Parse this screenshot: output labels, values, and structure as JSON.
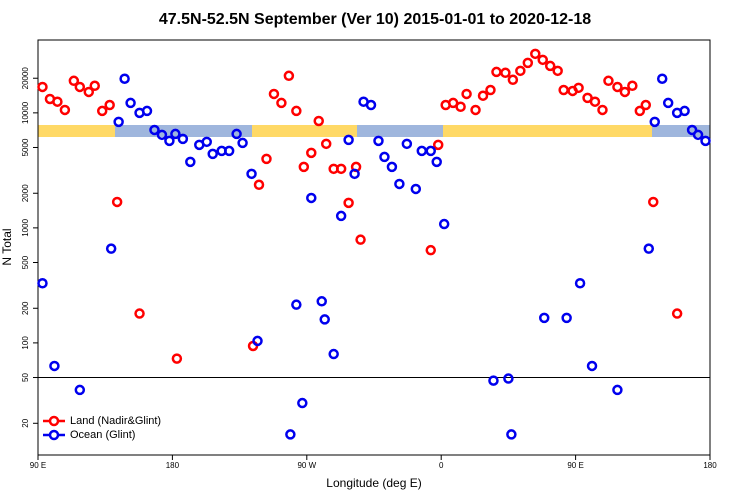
{
  "chart_data": {
    "type": "scatter",
    "title": "47.5N-52.5N September (Ver 10)   2015-01-01 to 2020-12-18",
    "x_label": "Longitude (deg E)",
    "y_label": "N Total",
    "log_y": true,
    "xlim": [
      90,
      540
    ],
    "ylim": [
      10.6,
      43000
    ],
    "xticks": [
      {
        "value": 90,
        "label": "90 E"
      },
      180,
      {
        "value": 270,
        "label": "90 W"
      },
      {
        "value": 360,
        "label": "0"
      },
      {
        "value": 450,
        "label": "90 E"
      },
      {
        "value": 540,
        "label": "180"
      }
    ],
    "yticks": [
      20,
      50,
      100,
      200,
      500,
      1000,
      2000,
      5000,
      10000,
      20000
    ],
    "hline": 50,
    "legend": "bottom-left",
    "series": [
      {
        "name": "Land (Nadir&Glint)",
        "color": "#ff0000",
        "x": [
          93,
          98,
          103,
          108,
          114,
          118,
          124,
          128,
          133,
          138,
          143,
          158,
          183,
          234,
          238,
          243,
          248,
          253,
          258,
          263,
          268,
          273,
          278,
          283,
          288,
          293,
          298,
          303,
          306,
          353,
          358,
          363,
          368,
          373,
          377,
          383,
          388,
          393,
          397,
          403,
          408,
          413,
          418,
          423,
          428,
          433,
          438,
          442,
          448,
          452,
          458,
          463,
          468,
          472,
          478,
          483,
          488,
          493,
          497,
          502,
          518
        ],
        "values": [
          16800,
          13200,
          12500,
          10600,
          19000,
          16800,
          15200,
          17200,
          10400,
          11700,
          1680,
          180,
          73,
          94,
          2370,
          3980,
          14600,
          12200,
          21000,
          10400,
          3390,
          4490,
          8500,
          5380,
          3260,
          3260,
          1650,
          3390,
          790,
          640,
          5270,
          11700,
          12200,
          11300,
          14600,
          10600,
          14100,
          15800,
          22700,
          22300,
          19400,
          23200,
          27200,
          32600,
          28900,
          25600,
          23200,
          15800,
          15500,
          16500,
          13500,
          12500,
          10600,
          19000,
          16800,
          15200,
          17200,
          10400,
          11700,
          1680,
          180
        ]
      },
      {
        "name": "Ocean (Glint)",
        "color": "#0000ee",
        "x": [
          93,
          101,
          118,
          139,
          144,
          148,
          152,
          158,
          163,
          168,
          173,
          178,
          182,
          187,
          192,
          198,
          203,
          207,
          213,
          218,
          223,
          227,
          233,
          237,
          259,
          263,
          267,
          273,
          280,
          282,
          288,
          293,
          298,
          302,
          308,
          313,
          318,
          322,
          327,
          332,
          337,
          343,
          347,
          353,
          357,
          362,
          395,
          405,
          407,
          429,
          444,
          453,
          461,
          478,
          499,
          503,
          508,
          512,
          518,
          523,
          528,
          532,
          537
        ],
        "values": [
          330,
          63,
          39,
          660,
          8350,
          19800,
          12200,
          10000,
          10400,
          7100,
          6440,
          5710,
          6560,
          5940,
          3750,
          5270,
          5600,
          4400,
          4670,
          4670,
          6560,
          5480,
          2950,
          104,
          16,
          215,
          30,
          1820,
          230,
          160,
          80,
          1270,
          5820,
          2950,
          12500,
          11700,
          5710,
          4140,
          3390,
          2410,
          5380,
          2180,
          4670,
          4670,
          3750,
          1080,
          47,
          49,
          16,
          165,
          165,
          330,
          63,
          39,
          660,
          8350,
          19800,
          12200,
          10000,
          10400,
          7100,
          6440,
          5710
        ]
      }
    ]
  }
}
